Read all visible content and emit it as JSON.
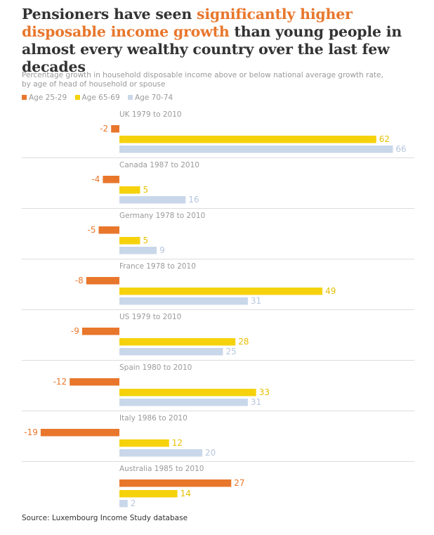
{
  "title": {
    "part1": "Pensioners have seen ",
    "highlight": "significantly higher disposable income growth",
    "part2": " than young people in almost every wealthy country over the last few decades"
  },
  "subtitle": {
    "line1": "Percentage growth in household disposable income above or below national average growth rate,",
    "line2": "by age of head of household or spouse"
  },
  "source": "Source: Luxembourg Income Study database",
  "colors": {
    "highlight": "#e8762b",
    "series": [
      "#e8762b",
      "#f5d20c",
      "#c9d7ea"
    ],
    "divider": "#dddddd",
    "muted_text": "#9a9a9a"
  },
  "chart_data": {
    "type": "bar",
    "orientation": "horizontal",
    "legend_position": "top-left",
    "grid": false,
    "categories": [
      "UK 1979 to 2010",
      "Canada 1987 to 2010",
      "Germany 1978 to 2010",
      "France 1978 to 2010",
      "US 1979 to 2010",
      "Spain 1980 to 2010",
      "Italy 1986 to 2010",
      "Australia 1985 to 2010"
    ],
    "series": [
      {
        "name": "Age 25-29",
        "values": [
          -2,
          -4,
          -5,
          -8,
          -9,
          -12,
          -19,
          27
        ]
      },
      {
        "name": "Age 65-69",
        "values": [
          62,
          5,
          5,
          49,
          28,
          33,
          12,
          14
        ]
      },
      {
        "name": "Age 70-74",
        "values": [
          66,
          16,
          9,
          31,
          25,
          31,
          20,
          2
        ]
      }
    ]
  }
}
